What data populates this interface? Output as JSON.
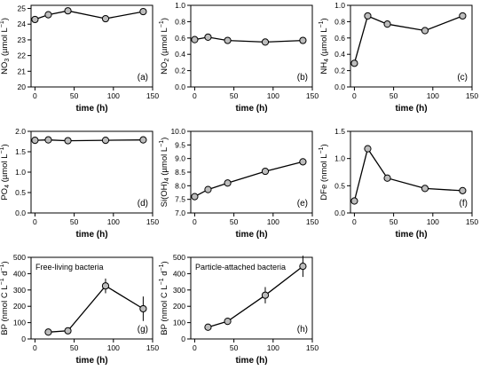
{
  "chart_data": [
    {
      "type": "line",
      "panel_label": "(a)",
      "ylabel_main": "NO",
      "ylabel_sub": "3",
      "ylabel_unit": " (µmol L",
      "ylabel_sup": "−1",
      "ylabel_end": ")",
      "xlabel": "time (h)",
      "xlim": [
        -5,
        150
      ],
      "ylim": [
        20,
        25.2
      ],
      "xticks": [
        0,
        50,
        100,
        150
      ],
      "yticks": [
        20,
        21,
        22,
        23,
        24,
        25
      ],
      "ytick_labels": [
        "20",
        "21",
        "22",
        "23",
        "24",
        "25"
      ],
      "x": [
        0,
        17,
        42,
        90,
        138
      ],
      "y": [
        24.3,
        24.6,
        24.85,
        24.35,
        24.8
      ]
    },
    {
      "type": "line",
      "panel_label": "(b)",
      "ylabel_main": "NO",
      "ylabel_sub": "2",
      "ylabel_unit": " (µmol L",
      "ylabel_sup": "−1",
      "ylabel_end": ")",
      "xlabel": "time (h)",
      "xlim": [
        -5,
        150
      ],
      "ylim": [
        0,
        1.0
      ],
      "xticks": [
        0,
        50,
        100,
        150
      ],
      "yticks": [
        0,
        0.2,
        0.4,
        0.6,
        0.8,
        1.0
      ],
      "ytick_labels": [
        "0.0",
        "0.2",
        "0.4",
        "0.6",
        "0.8",
        "1.0"
      ],
      "x": [
        0,
        17,
        42,
        90,
        138
      ],
      "y": [
        0.58,
        0.61,
        0.57,
        0.55,
        0.57
      ]
    },
    {
      "type": "line",
      "panel_label": "(c)",
      "ylabel_main": "NH",
      "ylabel_sub": "4",
      "ylabel_unit": " (µmol L",
      "ylabel_sup": "−1",
      "ylabel_end": ")",
      "xlabel": "time (h)",
      "xlim": [
        -5,
        150
      ],
      "ylim": [
        0,
        1.0
      ],
      "xticks": [
        0,
        50,
        100,
        150
      ],
      "yticks": [
        0,
        0.2,
        0.4,
        0.6,
        0.8,
        1.0
      ],
      "ytick_labels": [
        "0.0",
        "0.2",
        "0.4",
        "0.6",
        "0.8",
        "1.0"
      ],
      "x": [
        0,
        17,
        42,
        90,
        138
      ],
      "y": [
        0.29,
        0.87,
        0.77,
        0.69,
        0.87
      ]
    },
    {
      "type": "line",
      "panel_label": "(d)",
      "ylabel_main": "PO",
      "ylabel_sub": "4",
      "ylabel_unit": " (µmol L",
      "ylabel_sup": "−1",
      "ylabel_end": ")",
      "xlabel": "time (h)",
      "xlim": [
        -5,
        150
      ],
      "ylim": [
        0,
        2.0
      ],
      "xticks": [
        0,
        50,
        100,
        150
      ],
      "yticks": [
        0,
        0.5,
        1.0,
        1.5,
        2.0
      ],
      "ytick_labels": [
        "0.0",
        "0.5",
        "1.0",
        "1.5",
        "2.0"
      ],
      "x": [
        0,
        17,
        42,
        90,
        138
      ],
      "y": [
        1.78,
        1.79,
        1.77,
        1.78,
        1.79
      ]
    },
    {
      "type": "line",
      "panel_label": "(e)",
      "ylabel_main": "Si(OH)",
      "ylabel_sub": "4",
      "ylabel_unit": " (µmol L",
      "ylabel_sup": "−1",
      "ylabel_end": ")",
      "xlabel": "time (h)",
      "xlim": [
        -5,
        150
      ],
      "ylim": [
        7.0,
        10.0
      ],
      "xticks": [
        0,
        50,
        100,
        150
      ],
      "yticks": [
        7.0,
        7.5,
        8.0,
        8.5,
        9.0,
        9.5,
        10.0
      ],
      "ytick_labels": [
        "7.0",
        "7.5",
        "8.0",
        "8.5",
        "9.0",
        "9.5",
        "10.0"
      ],
      "x": [
        0,
        17,
        42,
        90,
        138
      ],
      "y": [
        7.6,
        7.86,
        8.1,
        8.53,
        8.88
      ]
    },
    {
      "type": "line",
      "panel_label": "(f)",
      "ylabel_main": "DFe",
      "ylabel_sub": "",
      "ylabel_unit": " (nmol L",
      "ylabel_sup": "−1",
      "ylabel_end": ")",
      "xlabel": "time (h)",
      "xlim": [
        -5,
        150
      ],
      "ylim": [
        0,
        1.5
      ],
      "xticks": [
        0,
        50,
        100,
        150
      ],
      "yticks": [
        0,
        0.5,
        1.0,
        1.5
      ],
      "ytick_labels": [
        "0.0",
        "0.5",
        "1.0",
        "1.5"
      ],
      "x": [
        0,
        17,
        42,
        90,
        138
      ],
      "y": [
        0.22,
        1.18,
        0.64,
        0.45,
        0.41
      ]
    },
    {
      "type": "line",
      "panel_label": "(g)",
      "annotation": "Free-living bacteria",
      "ylabel_main": "BP",
      "ylabel_sub": "",
      "ylabel_unit": " (nmol C L",
      "ylabel_sup": "−1",
      "ylabel_mid": " d",
      "ylabel_sup2": "−1",
      "ylabel_end": ")",
      "xlabel": "time (h)",
      "xlim": [
        -5,
        150
      ],
      "ylim": [
        0,
        500
      ],
      "xticks": [
        0,
        50,
        100,
        150
      ],
      "yticks": [
        0,
        100,
        200,
        300,
        400,
        500
      ],
      "ytick_labels": [
        "0",
        "100",
        "200",
        "300",
        "400",
        "500"
      ],
      "x": [
        17,
        42,
        90,
        138
      ],
      "y": [
        42,
        50,
        325,
        185
      ],
      "yerr": [
        0,
        0,
        45,
        75
      ]
    },
    {
      "type": "line",
      "panel_label": "(h)",
      "annotation": "Particle-attached bacteria",
      "ylabel_main": "BP",
      "ylabel_sub": "",
      "ylabel_unit": " (nmol C L",
      "ylabel_sup": "−1",
      "ylabel_mid": " d",
      "ylabel_sup2": "−1",
      "ylabel_end": ")",
      "xlabel": "time (h)",
      "xlim": [
        -5,
        150
      ],
      "ylim": [
        0,
        500
      ],
      "xticks": [
        0,
        50,
        100,
        150
      ],
      "yticks": [
        0,
        100,
        200,
        300,
        400,
        500
      ],
      "ytick_labels": [
        "0",
        "100",
        "200",
        "300",
        "400",
        "500"
      ],
      "x": [
        17,
        42,
        90,
        138
      ],
      "y": [
        72,
        108,
        268,
        445
      ],
      "yerr": [
        0,
        0,
        50,
        65
      ]
    }
  ]
}
